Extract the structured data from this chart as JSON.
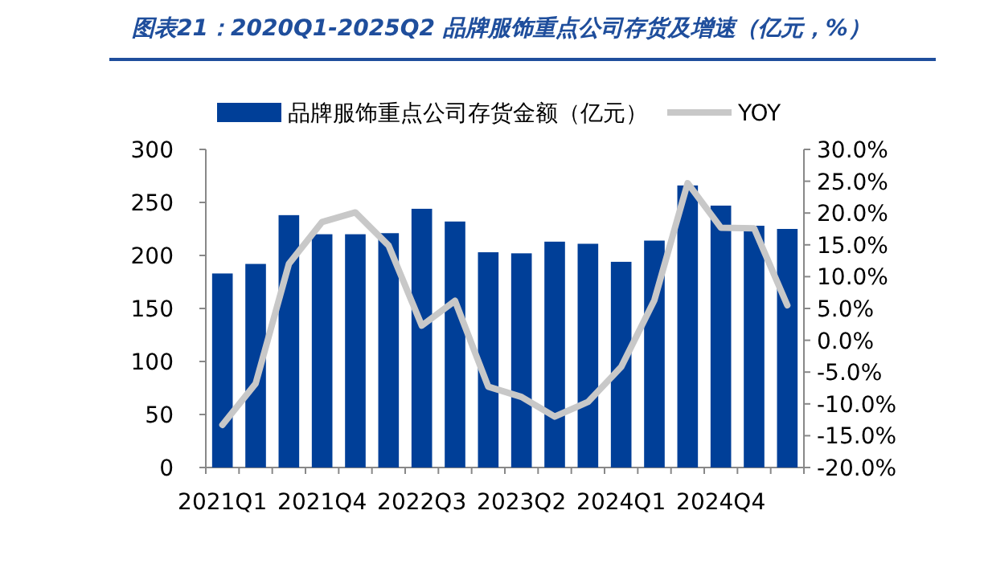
{
  "chart_data": {
    "type": "bar",
    "title": "图表21：2020Q1-2025Q2 品牌服饰重点公司存货及增速（亿元，%）",
    "categories": [
      "2021Q1",
      null,
      null,
      "2021Q4",
      null,
      null,
      "2022Q3",
      null,
      null,
      "2023Q2",
      null,
      null,
      "2024Q1",
      null,
      null,
      "2024Q4",
      null,
      null
    ],
    "series": [
      {
        "name": "品牌服饰重点公司存货金额（亿元）",
        "color": "#003f98",
        "values": [
          183,
          192,
          238,
          220,
          220,
          221,
          244,
          232,
          203,
          202,
          213,
          211,
          194,
          214,
          266,
          247,
          228,
          225
        ]
      },
      {
        "name": "YOY",
        "type": "line",
        "axis": "y2",
        "color": "#c8c8c8",
        "values": [
          -13.3,
          -6.8,
          12.0,
          18.6,
          20.1,
          14.9,
          2.3,
          6.2,
          -7.3,
          -8.9,
          -12.0,
          -9.7,
          -4.2,
          6.3,
          24.7,
          17.7,
          17.6,
          5.5
        ]
      }
    ],
    "ylim": [
      0,
      300
    ],
    "yticks": [
      0,
      50,
      100,
      150,
      200,
      250,
      300
    ],
    "y2lim": [
      -20,
      30
    ],
    "y2ticks": [
      {
        "value": -20,
        "label": "-20.0%"
      },
      {
        "value": -15,
        "label": "-15.0%"
      },
      {
        "value": -10,
        "label": "-10.0%"
      },
      {
        "value": -5,
        "label": "-5.0%"
      },
      {
        "value": 0,
        "label": "0.0%"
      },
      {
        "value": 5,
        "label": "5.0%"
      },
      {
        "value": 10,
        "label": "10.0%"
      },
      {
        "value": 15,
        "label": "15.0%"
      },
      {
        "value": 20,
        "label": "20.0%"
      },
      {
        "value": 25,
        "label": "25.0%"
      },
      {
        "value": 30,
        "label": "30.0%"
      }
    ],
    "legend": "top"
  }
}
